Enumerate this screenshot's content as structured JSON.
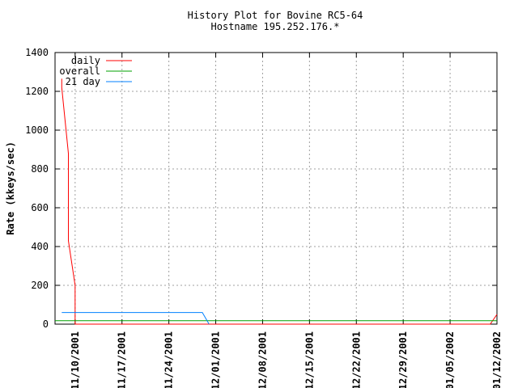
{
  "chart_data": {
    "type": "line",
    "title": "History Plot for Bovine RC5-64",
    "subtitle": "Hostname 195.252.176.*",
    "xlabel": "",
    "ylabel": "Rate (kkeys/sec)",
    "ylim": [
      0,
      1400
    ],
    "yticks": [
      0,
      200,
      400,
      600,
      800,
      1000,
      1200,
      1400
    ],
    "xlim": [
      "2001-11-07",
      "2002-01-12"
    ],
    "xticks": [
      "11/10/2001",
      "11/17/2001",
      "11/24/2001",
      "12/01/2001",
      "12/08/2001",
      "12/15/2001",
      "12/22/2001",
      "12/29/2001",
      "01/05/2002",
      "01/12/2002"
    ],
    "grid": true,
    "legend_position": "top-left",
    "series": [
      {
        "name": "daily",
        "color": "#ff0000",
        "points": [
          [
            "2001-11-08",
            1265
          ],
          [
            "2001-11-08",
            1220
          ],
          [
            "2001-11-09",
            880
          ],
          [
            "2001-11-09",
            430
          ],
          [
            "2001-11-10",
            200
          ],
          [
            "2001-11-10",
            0
          ],
          [
            "2002-01-11",
            0
          ],
          [
            "2002-01-12",
            50
          ]
        ]
      },
      {
        "name": "overall",
        "color": "#00a000",
        "points": [
          [
            "2001-11-07",
            18
          ],
          [
            "2002-01-12",
            18
          ]
        ]
      },
      {
        "name": "21 day",
        "color": "#0080ff",
        "points": [
          [
            "2001-11-08",
            60
          ],
          [
            "2001-11-29",
            60
          ],
          [
            "2001-11-30",
            0
          ]
        ]
      }
    ]
  }
}
